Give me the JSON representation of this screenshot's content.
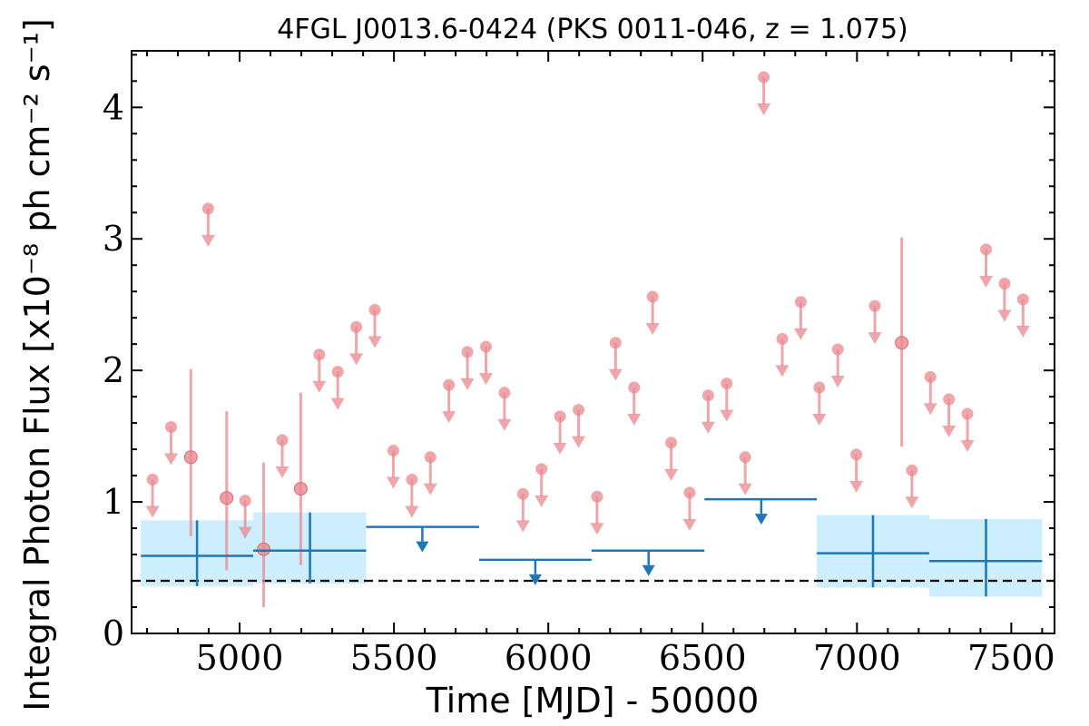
{
  "chart_data": {
    "type": "scatter",
    "title": "4FGL J0013.6-0424 (PKS 0011-046, z = 1.075)",
    "xlabel": "Time [MJD] - 50000",
    "ylabel": "Integral Photon Flux [x10⁻⁸ ph cm⁻² s⁻¹]",
    "xlim": [
      4650,
      7640
    ],
    "ylim": [
      0,
      4.43
    ],
    "xticks": [
      5000,
      5500,
      6000,
      6500,
      7000,
      7500
    ],
    "yticks": [
      0,
      1,
      2,
      3,
      4
    ],
    "grid": false,
    "reference_line": {
      "y": 0.4,
      "style": "dashed"
    },
    "colors": {
      "fine_bins": "#e8888f",
      "coarse_bins": "#1f77b4",
      "coarse_band": "#cdeefc",
      "reference": "#000000"
    },
    "series": [
      {
        "kind": "coarse_detections",
        "points": [
          {
            "x": 4862,
            "x0": 4680,
            "x1": 5044,
            "y": 0.59,
            "ylo": 0.36,
            "yhi": 0.86
          },
          {
            "x": 5228,
            "x0": 5044,
            "x1": 5410,
            "y": 0.63,
            "ylo": 0.38,
            "yhi": 0.92
          },
          {
            "x": 7052,
            "x0": 6870,
            "x1": 7234,
            "y": 0.61,
            "ylo": 0.35,
            "yhi": 0.9
          },
          {
            "x": 7418,
            "x0": 7234,
            "x1": 7600,
            "y": 0.55,
            "ylo": 0.28,
            "yhi": 0.87
          }
        ]
      },
      {
        "kind": "coarse_upper_limits",
        "points": [
          {
            "x": 5592,
            "x0": 5410,
            "x1": 5776,
            "y": 0.81
          },
          {
            "x": 5958,
            "x0": 5776,
            "x1": 6140,
            "y": 0.56
          },
          {
            "x": 6325,
            "x0": 6140,
            "x1": 6506,
            "y": 0.63
          },
          {
            "x": 6690,
            "x0": 6506,
            "x1": 6870,
            "y": 1.02
          }
        ]
      },
      {
        "kind": "fine_detections",
        "points": [
          {
            "x": 4842,
            "y": 1.34,
            "ylo": 0.74,
            "yhi": 2.01
          },
          {
            "x": 4958,
            "y": 1.03,
            "ylo": 0.48,
            "yhi": 1.69
          },
          {
            "x": 5078,
            "y": 0.64,
            "ylo": 0.2,
            "yhi": 1.3
          },
          {
            "x": 5198,
            "y": 1.1,
            "ylo": 0.52,
            "yhi": 1.83
          },
          {
            "x": 7145,
            "y": 2.21,
            "ylo": 1.42,
            "yhi": 3.01
          }
        ]
      },
      {
        "kind": "fine_upper_limits",
        "points": [
          {
            "x": 4718,
            "y": 1.17
          },
          {
            "x": 4778,
            "y": 1.57
          },
          {
            "x": 4898,
            "y": 3.23
          },
          {
            "x": 5018,
            "y": 1.01
          },
          {
            "x": 5138,
            "y": 1.47
          },
          {
            "x": 5258,
            "y": 2.12
          },
          {
            "x": 5318,
            "y": 1.99
          },
          {
            "x": 5378,
            "y": 2.33
          },
          {
            "x": 5438,
            "y": 2.46
          },
          {
            "x": 5498,
            "y": 1.39
          },
          {
            "x": 5558,
            "y": 1.17
          },
          {
            "x": 5618,
            "y": 1.34
          },
          {
            "x": 5678,
            "y": 1.89
          },
          {
            "x": 5738,
            "y": 2.14
          },
          {
            "x": 5798,
            "y": 2.18
          },
          {
            "x": 5858,
            "y": 1.83
          },
          {
            "x": 5918,
            "y": 1.06
          },
          {
            "x": 5978,
            "y": 1.25
          },
          {
            "x": 6038,
            "y": 1.65
          },
          {
            "x": 6098,
            "y": 1.7
          },
          {
            "x": 6158,
            "y": 1.04
          },
          {
            "x": 6218,
            "y": 2.21
          },
          {
            "x": 6278,
            "y": 1.87
          },
          {
            "x": 6338,
            "y": 2.56
          },
          {
            "x": 6398,
            "y": 1.45
          },
          {
            "x": 6458,
            "y": 1.07
          },
          {
            "x": 6518,
            "y": 1.81
          },
          {
            "x": 6578,
            "y": 1.9
          },
          {
            "x": 6638,
            "y": 1.34
          },
          {
            "x": 6698,
            "y": 4.23
          },
          {
            "x": 6758,
            "y": 2.24
          },
          {
            "x": 6818,
            "y": 2.52
          },
          {
            "x": 6878,
            "y": 1.87
          },
          {
            "x": 6938,
            "y": 2.16
          },
          {
            "x": 6998,
            "y": 1.36
          },
          {
            "x": 7058,
            "y": 2.49
          },
          {
            "x": 7178,
            "y": 1.24
          },
          {
            "x": 7238,
            "y": 1.95
          },
          {
            "x": 7298,
            "y": 1.78
          },
          {
            "x": 7358,
            "y": 1.67
          },
          {
            "x": 7418,
            "y": 2.92
          },
          {
            "x": 7478,
            "y": 2.66
          },
          {
            "x": 7538,
            "y": 2.54
          }
        ]
      }
    ]
  }
}
